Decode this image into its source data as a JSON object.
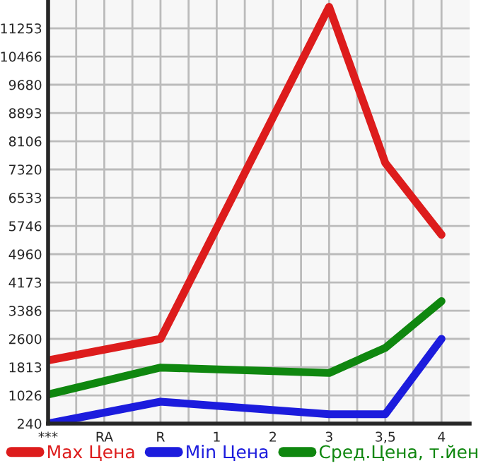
{
  "chart_data": {
    "type": "line",
    "categories": [
      "***",
      "RA",
      "R",
      "1",
      "2",
      "3",
      "3,5",
      "4"
    ],
    "series": [
      {
        "name": "Max Цена",
        "color": "#dd1c1c",
        "values": [
          2000,
          null,
          2600,
          null,
          null,
          11850,
          7500,
          5500
        ]
      },
      {
        "name": "Min Цена",
        "color": "#1c1cdd",
        "values": [
          240,
          null,
          850,
          null,
          null,
          500,
          500,
          2600
        ]
      },
      {
        "name": "Сред.Цена, т.йен",
        "color": "#0f870f",
        "values": [
          1050,
          null,
          1800,
          null,
          null,
          1650,
          2350,
          3650
        ]
      }
    ],
    "ylim": [
      240,
      12040
    ],
    "yticks": [
      240,
      1026,
      1813,
      2600,
      3386,
      4173,
      4960,
      5746,
      6533,
      7320,
      8106,
      8893,
      9680,
      10466,
      11253
    ],
    "grid": true,
    "legend": "bottom",
    "marker": "none",
    "line_style": "solid"
  }
}
